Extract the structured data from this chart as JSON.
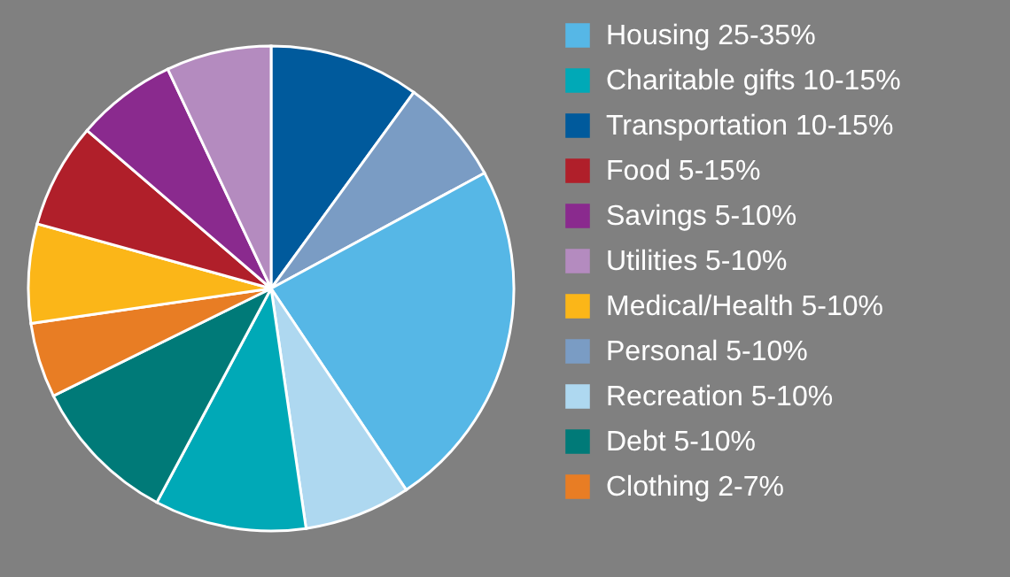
{
  "chart_data": {
    "type": "pie",
    "categories": [
      "Transportation 10-15%",
      "Personal 5-10%",
      "Housing 25-35%",
      "Recreation 5-10%",
      "Charitable gifts 10-15%",
      "Debt 5-10%",
      "Clothing 2-7%",
      "Medical/Health 5-10%",
      "Food 5-15%",
      "Savings 5-10%",
      "Utilities 5-10%"
    ],
    "values": [
      10.0,
      7.1,
      23.5,
      7.1,
      10.1,
      9.9,
      5.0,
      6.6,
      7.0,
      6.7,
      7.0
    ],
    "colors": [
      "#005a9c",
      "#7a9cc4",
      "#56b7e6",
      "#aed8f0",
      "#00a9b7",
      "#007a78",
      "#e87d24",
      "#fbb618",
      "#b01f2a",
      "#8a2a8e",
      "#b48bbf"
    ],
    "legend": "right"
  }
}
